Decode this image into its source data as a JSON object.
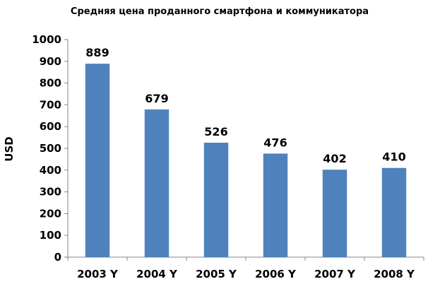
{
  "chart_data": {
    "type": "bar",
    "title": "Средняя цена проданного смартфона и коммуникатора",
    "xlabel": "",
    "ylabel": "USD",
    "categories": [
      "2003 Y",
      "2004 Y",
      "2005 Y",
      "2006 Y",
      "2007 Y",
      "2008 Y"
    ],
    "values": [
      889,
      679,
      526,
      476,
      402,
      410
    ],
    "data_labels": [
      "889",
      "679",
      "526",
      "476",
      "402",
      "410"
    ],
    "ylim": [
      0,
      1000
    ],
    "yticks": [
      "0",
      "100",
      "200",
      "300",
      "400",
      "500",
      "600",
      "700",
      "800",
      "900",
      "1000"
    ],
    "grid": false,
    "legend": "none",
    "bar_color": "#4F81BD"
  }
}
